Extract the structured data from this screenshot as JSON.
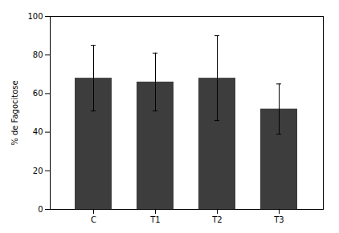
{
  "chart_data": {
    "type": "bar",
    "categories": [
      "C",
      "T1",
      "T2",
      "T3"
    ],
    "values": [
      68,
      66,
      68,
      52
    ],
    "errors": [
      17,
      15,
      22,
      13
    ],
    "color": "#3d3d3d",
    "ylabel": "% de Fagocitose",
    "ylim": [
      0,
      100
    ],
    "yticks": [
      0,
      20,
      40,
      60,
      80,
      100
    ],
    "grid": false
  }
}
